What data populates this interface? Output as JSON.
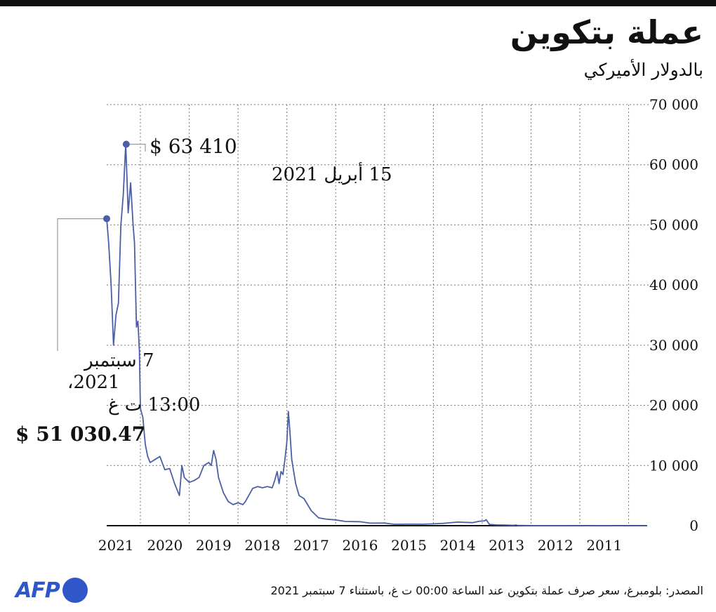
{
  "header": {
    "title": "عملة بتكوين",
    "subtitle": "بالدولار الأميركي"
  },
  "footer": {
    "source": "المصدر: بلومبرغ، سعر صرف عملة بتكوين عند الساعة 00:00 ت غ، باستثناء 7 سبتمبر 2021",
    "logo": "AFP"
  },
  "colors": {
    "line": "#4a5fa8",
    "grid": "#777777",
    "axis": "#111111",
    "logo": "#2f57c9"
  },
  "chart_data": {
    "type": "line",
    "title": "عملة بتكوين",
    "subtitle": "بالدولار الأميركي",
    "x_axis": {
      "direction": "right-to-left",
      "range": [
        2010.62,
        2021.69
      ],
      "tick_labels": [
        "2011",
        "2012",
        "2013",
        "2014",
        "2015",
        "2016",
        "2017",
        "2018",
        "2019",
        "2020",
        "2021"
      ],
      "tick_positions": [
        2011.5,
        2012.5,
        2013.5,
        2014.5,
        2015.5,
        2016.5,
        2017.5,
        2018.5,
        2019.5,
        2020.5,
        2021.5
      ],
      "gridlines_at_year_start": [
        2011,
        2012,
        2013,
        2014,
        2015,
        2016,
        2017,
        2018,
        2019,
        2020,
        2021
      ]
    },
    "y_axis": {
      "position": "right",
      "range": [
        0,
        70000
      ],
      "ticks": [
        0,
        10000,
        20000,
        30000,
        40000,
        50000,
        60000,
        70000
      ],
      "tick_labels": [
        "0",
        "10 000",
        "20 000",
        "30 000",
        "40 000",
        "50 000",
        "60 000",
        "70 000"
      ]
    },
    "grid": true,
    "series": [
      {
        "x": [
          2010.62,
          2011.0,
          2011.3,
          2011.44,
          2011.6,
          2011.8,
          2012.0,
          2012.5,
          2012.9,
          2013.1,
          2013.28,
          2013.31,
          2013.35,
          2013.5,
          2013.7,
          2013.85,
          2013.92,
          2013.95,
          2014.05,
          2014.2,
          2014.5,
          2014.8,
          2015.0,
          2015.2,
          2015.5,
          2015.8,
          2016.0,
          2016.3,
          2016.5,
          2016.8,
          2017.0,
          2017.2,
          2017.35,
          2017.5,
          2017.65,
          2017.75,
          2017.82,
          2017.9,
          2017.94,
          2017.97,
          2018.0,
          2018.04,
          2018.08,
          2018.12,
          2018.16,
          2018.2,
          2018.25,
          2018.3,
          2018.4,
          2018.5,
          2018.6,
          2018.7,
          2018.85,
          2018.9,
          2019.0,
          2019.1,
          2019.2,
          2019.3,
          2019.4,
          2019.45,
          2019.5,
          2019.55,
          2019.6,
          2019.7,
          2019.8,
          2019.9,
          2020.0,
          2020.1,
          2020.15,
          2020.2,
          2020.3,
          2020.4,
          2020.5,
          2020.6,
          2020.7,
          2020.8,
          2020.85,
          2020.9,
          2020.95,
          2021.0,
          2021.02,
          2021.05,
          2021.08,
          2021.12,
          2021.15,
          2021.2,
          2021.25,
          2021.28,
          2021.3,
          2021.35,
          2021.4,
          2021.45,
          2021.5,
          2021.55,
          2021.6,
          2021.65,
          2021.69
        ],
        "y": [
          0.1,
          0.3,
          0.8,
          15,
          10,
          3,
          5,
          6,
          12,
          20,
          60,
          120,
          60,
          110,
          130,
          200,
          1000,
          800,
          750,
          500,
          600,
          380,
          300,
          240,
          260,
          230,
          430,
          420,
          650,
          700,
          960,
          1100,
          1300,
          2500,
          4500,
          5000,
          7000,
          11000,
          16000,
          19000,
          14000,
          11000,
          8500,
          9000,
          7000,
          9000,
          7500,
          6300,
          6500,
          6300,
          6500,
          6200,
          4000,
          3500,
          3800,
          3500,
          4000,
          5500,
          8000,
          11000,
          12500,
          10000,
          10500,
          10000,
          8000,
          7500,
          7200,
          8000,
          10000,
          5000,
          7000,
          9500,
          9300,
          11500,
          11000,
          10500,
          11500,
          13500,
          18000,
          19500,
          29000,
          34000,
          33000,
          47000,
          50000,
          57000,
          52000,
          59000,
          63410,
          55000,
          50000,
          37000,
          35000,
          30000,
          40000,
          47000,
          51030.47
        ]
      }
    ],
    "annotations": [
      {
        "x": 2021.29,
        "y": 63410,
        "value_label": "$ 63 410",
        "date_label": "15 أبريل 2021"
      },
      {
        "x": 2021.69,
        "y": 51030.47,
        "date_line1": "7 سبتمبر",
        "date_line2": "2021،",
        "date_line3": "13:00 ت غ",
        "value_label": "$ 51 030.47"
      }
    ]
  }
}
